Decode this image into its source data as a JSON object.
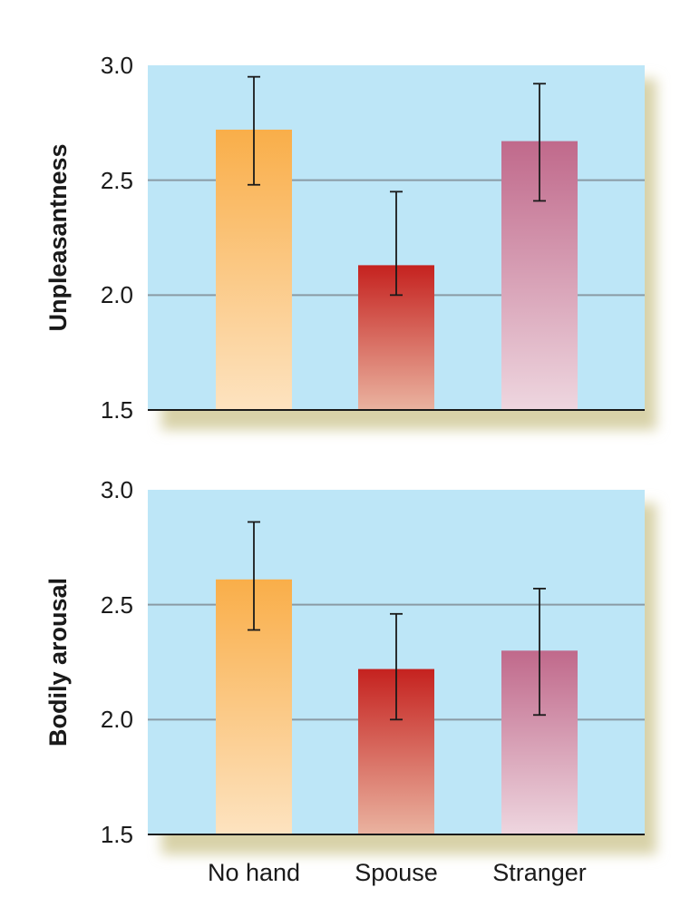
{
  "chart_data": [
    {
      "type": "bar",
      "categories": [
        "No hand",
        "Spouse",
        "Stranger"
      ],
      "values": [
        2.72,
        2.13,
        2.67
      ],
      "error_low": [
        2.48,
        2.0,
        2.41
      ],
      "error_high": [
        2.95,
        2.45,
        2.92
      ],
      "ylabel": "Unpleasantness",
      "xlabel": "",
      "ylim": [
        1.5,
        3.0
      ],
      "yticks": [
        "1.5",
        "2.0",
        "2.5",
        "3.0"
      ],
      "grid": true
    },
    {
      "type": "bar",
      "categories": [
        "No hand",
        "Spouse",
        "Stranger"
      ],
      "values": [
        2.61,
        2.22,
        2.3
      ],
      "error_low": [
        2.39,
        2.0,
        2.02
      ],
      "error_high": [
        2.86,
        2.46,
        2.57
      ],
      "ylabel": "Bodily arousal",
      "xlabel": "",
      "ylim": [
        1.5,
        3.0
      ],
      "yticks": [
        "1.5",
        "2.0",
        "2.5",
        "3.0"
      ],
      "grid": true
    }
  ],
  "x_labels": [
    "No hand",
    "Spouse",
    "Stranger"
  ],
  "colors": {
    "panel_bg": "#bde6f7",
    "grid": "#8a9aa4",
    "shadow": "#d8d2a8",
    "no_hand_top": "#f9ae49",
    "no_hand_bottom": "#fde3c0",
    "spouse_top": "#c5221f",
    "spouse_bottom": "#eab3a0",
    "stranger_top": "#c0698b",
    "stranger_bottom": "#eed6df"
  }
}
